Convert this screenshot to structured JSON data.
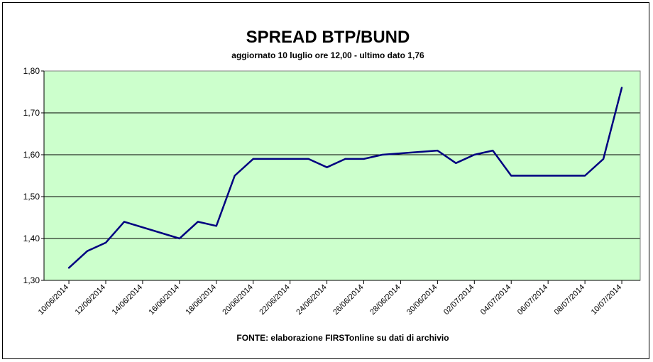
{
  "chart_data": {
    "type": "line",
    "title": "SPREAD BTP/BUND",
    "subtitle": "aggiornato 10 luglio ore 12,00 - ultimo dato 1,76",
    "source": "FONTE:  elaborazione FIRSTonline su dati di archivio",
    "xlabel": "",
    "ylabel": "",
    "ylim": [
      1.3,
      1.8
    ],
    "y_ticks": [
      "1,30",
      "1,40",
      "1,50",
      "1,60",
      "1,70",
      "1,80"
    ],
    "y_tick_values": [
      1.3,
      1.4,
      1.5,
      1.6,
      1.7,
      1.8
    ],
    "x_tick_labels": [
      "10/06/2014",
      "12/06/2014",
      "14/06/2014",
      "16/06/2014",
      "18/06/2014",
      "20/06/2014",
      "22/06/2014",
      "24/06/2014",
      "26/06/2014",
      "28/06/2014",
      "30/06/2014",
      "02/07/2014",
      "04/07/2014",
      "06/07/2014",
      "08/07/2014",
      "10/07/2014"
    ],
    "grid": true,
    "legend": "none",
    "colors": {
      "plot_background": "#ccffcc",
      "line": "#000080",
      "grid": "#000000"
    },
    "series": [
      {
        "x": [
          "2014-06-10",
          "2014-06-11",
          "2014-06-12",
          "2014-06-13",
          "2014-06-16",
          "2014-06-17",
          "2014-06-18",
          "2014-06-19",
          "2014-06-20",
          "2014-06-23",
          "2014-06-24",
          "2014-06-25",
          "2014-06-26",
          "2014-06-27",
          "2014-06-30",
          "2014-07-01",
          "2014-07-02",
          "2014-07-03",
          "2014-07-04",
          "2014-07-07",
          "2014-07-08",
          "2014-07-09",
          "2014-07-10"
        ],
        "y": [
          1.33,
          1.37,
          1.39,
          1.44,
          1.4,
          1.44,
          1.43,
          1.55,
          1.59,
          1.59,
          1.57,
          1.59,
          1.59,
          1.6,
          1.61,
          1.58,
          1.6,
          1.61,
          1.55,
          1.55,
          1.55,
          1.59,
          1.76
        ]
      }
    ]
  }
}
